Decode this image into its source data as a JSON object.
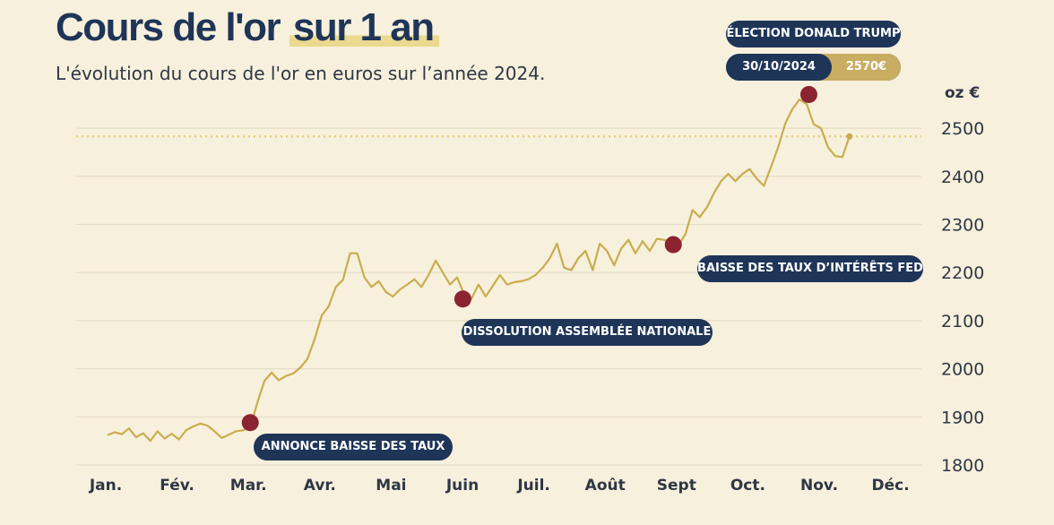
{
  "header": {
    "title_main": "Cours de l'or",
    "title_highlight": "sur 1 an",
    "subtitle": "L'évolution du cours de l'or en euros sur l’année 2024.",
    "unit": "oz €"
  },
  "annotations": {
    "election": "ÉLECTION DONALD TRUMP",
    "election_date": "30/10/2024",
    "election_value": "2570€",
    "baisse_taux": "ANNONCE BAISSE DES TAUX",
    "dissolution": "DISSOLUTION ASSEMBLÉE NATIONALE",
    "fed": "BAISSE DES TAUX D’INTÉRÊTS FED"
  },
  "colors": {
    "background": "#f7f0dc",
    "line": "#c8ad4e",
    "marker": "#8b2330",
    "pill": "#1f3558",
    "reference_line": "#e6cf72"
  },
  "chart_data": {
    "type": "line",
    "title": "Cours de l'or sur 1 an",
    "ylabel": "oz €",
    "ylim": [
      1800,
      2580
    ],
    "yticks": [
      1800,
      1900,
      2000,
      2100,
      2200,
      2300,
      2400,
      2500
    ],
    "categories": [
      "Jan.",
      "Fév.",
      "Mar.",
      "Avr.",
      "Mai",
      "Juin",
      "Juil.",
      "Août",
      "Sept",
      "Oct.",
      "Nov.",
      "Déc."
    ],
    "grid": true,
    "reference_line": 2483,
    "x": [
      0.0,
      0.1,
      0.2,
      0.3,
      0.4,
      0.5,
      0.6,
      0.7,
      0.8,
      0.9,
      1.0,
      1.1,
      1.2,
      1.3,
      1.4,
      1.5,
      1.6,
      1.7,
      1.8,
      1.9,
      2.0,
      2.1,
      2.2,
      2.3,
      2.4,
      2.5,
      2.6,
      2.7,
      2.8,
      2.9,
      3.0,
      3.1,
      3.2,
      3.3,
      3.4,
      3.5,
      3.6,
      3.7,
      3.8,
      3.9,
      4.0,
      4.1,
      4.2,
      4.3,
      4.4,
      4.5,
      4.6,
      4.7,
      4.8,
      4.9,
      5.0,
      5.1,
      5.2,
      5.3,
      5.4,
      5.5,
      5.6,
      5.7,
      5.8,
      5.9,
      6.0,
      6.1,
      6.2,
      6.3,
      6.4,
      6.5,
      6.6,
      6.7,
      6.8,
      6.9,
      7.0,
      7.1,
      7.2,
      7.3,
      7.4,
      7.5,
      7.6,
      7.7,
      7.8,
      7.9,
      8.0,
      8.1,
      8.2,
      8.3,
      8.4,
      8.5,
      8.6,
      8.7,
      8.8,
      8.9,
      9.0,
      9.1,
      9.2,
      9.3,
      9.4,
      9.5,
      9.6,
      9.7,
      9.8,
      9.9,
      10.0,
      10.1,
      10.2,
      10.3,
      10.4
    ],
    "series": [
      {
        "values": [
          1862,
          1868,
          1864,
          1876,
          1858,
          1866,
          1850,
          1870,
          1855,
          1865,
          1853,
          1872,
          1880,
          1886,
          1882,
          1870,
          1856,
          1863,
          1870,
          1872,
          1878,
          1930,
          1975,
          1992,
          1976,
          1985,
          1990,
          2002,
          2020,
          2060,
          2110,
          2130,
          2170,
          2185,
          2240,
          2240,
          2190,
          2170,
          2182,
          2160,
          2150,
          2165,
          2175,
          2186,
          2170,
          2195,
          2225,
          2200,
          2175,
          2190,
          2155,
          2145,
          2175,
          2150,
          2172,
          2195,
          2175,
          2180,
          2182,
          2186,
          2195,
          2210,
          2230,
          2260,
          2210,
          2205,
          2230,
          2245,
          2205,
          2260,
          2245,
          2215,
          2250,
          2268,
          2240,
          2265,
          2245,
          2270,
          2268,
          2262,
          2256,
          2280,
          2330,
          2315,
          2335,
          2365,
          2390,
          2405,
          2390,
          2405,
          2415,
          2395,
          2380,
          2420,
          2460,
          2510,
          2540,
          2560,
          2550,
          2508,
          2500,
          2460,
          2442,
          2440,
          2483
        ]
      }
    ],
    "events": [
      {
        "x": 2.0,
        "y": 1888,
        "label": "ANNONCE BAISSE DES TAUX"
      },
      {
        "x": 4.98,
        "y": 2145,
        "label": "DISSOLUTION ASSEMBLÉE NATIONALE"
      },
      {
        "x": 7.93,
        "y": 2258,
        "label": "BAISSE DES TAUX D’INTÉRÊTS FED"
      },
      {
        "x": 9.83,
        "y": 2570,
        "label": "ÉLECTION DONALD TRUMP"
      }
    ]
  }
}
